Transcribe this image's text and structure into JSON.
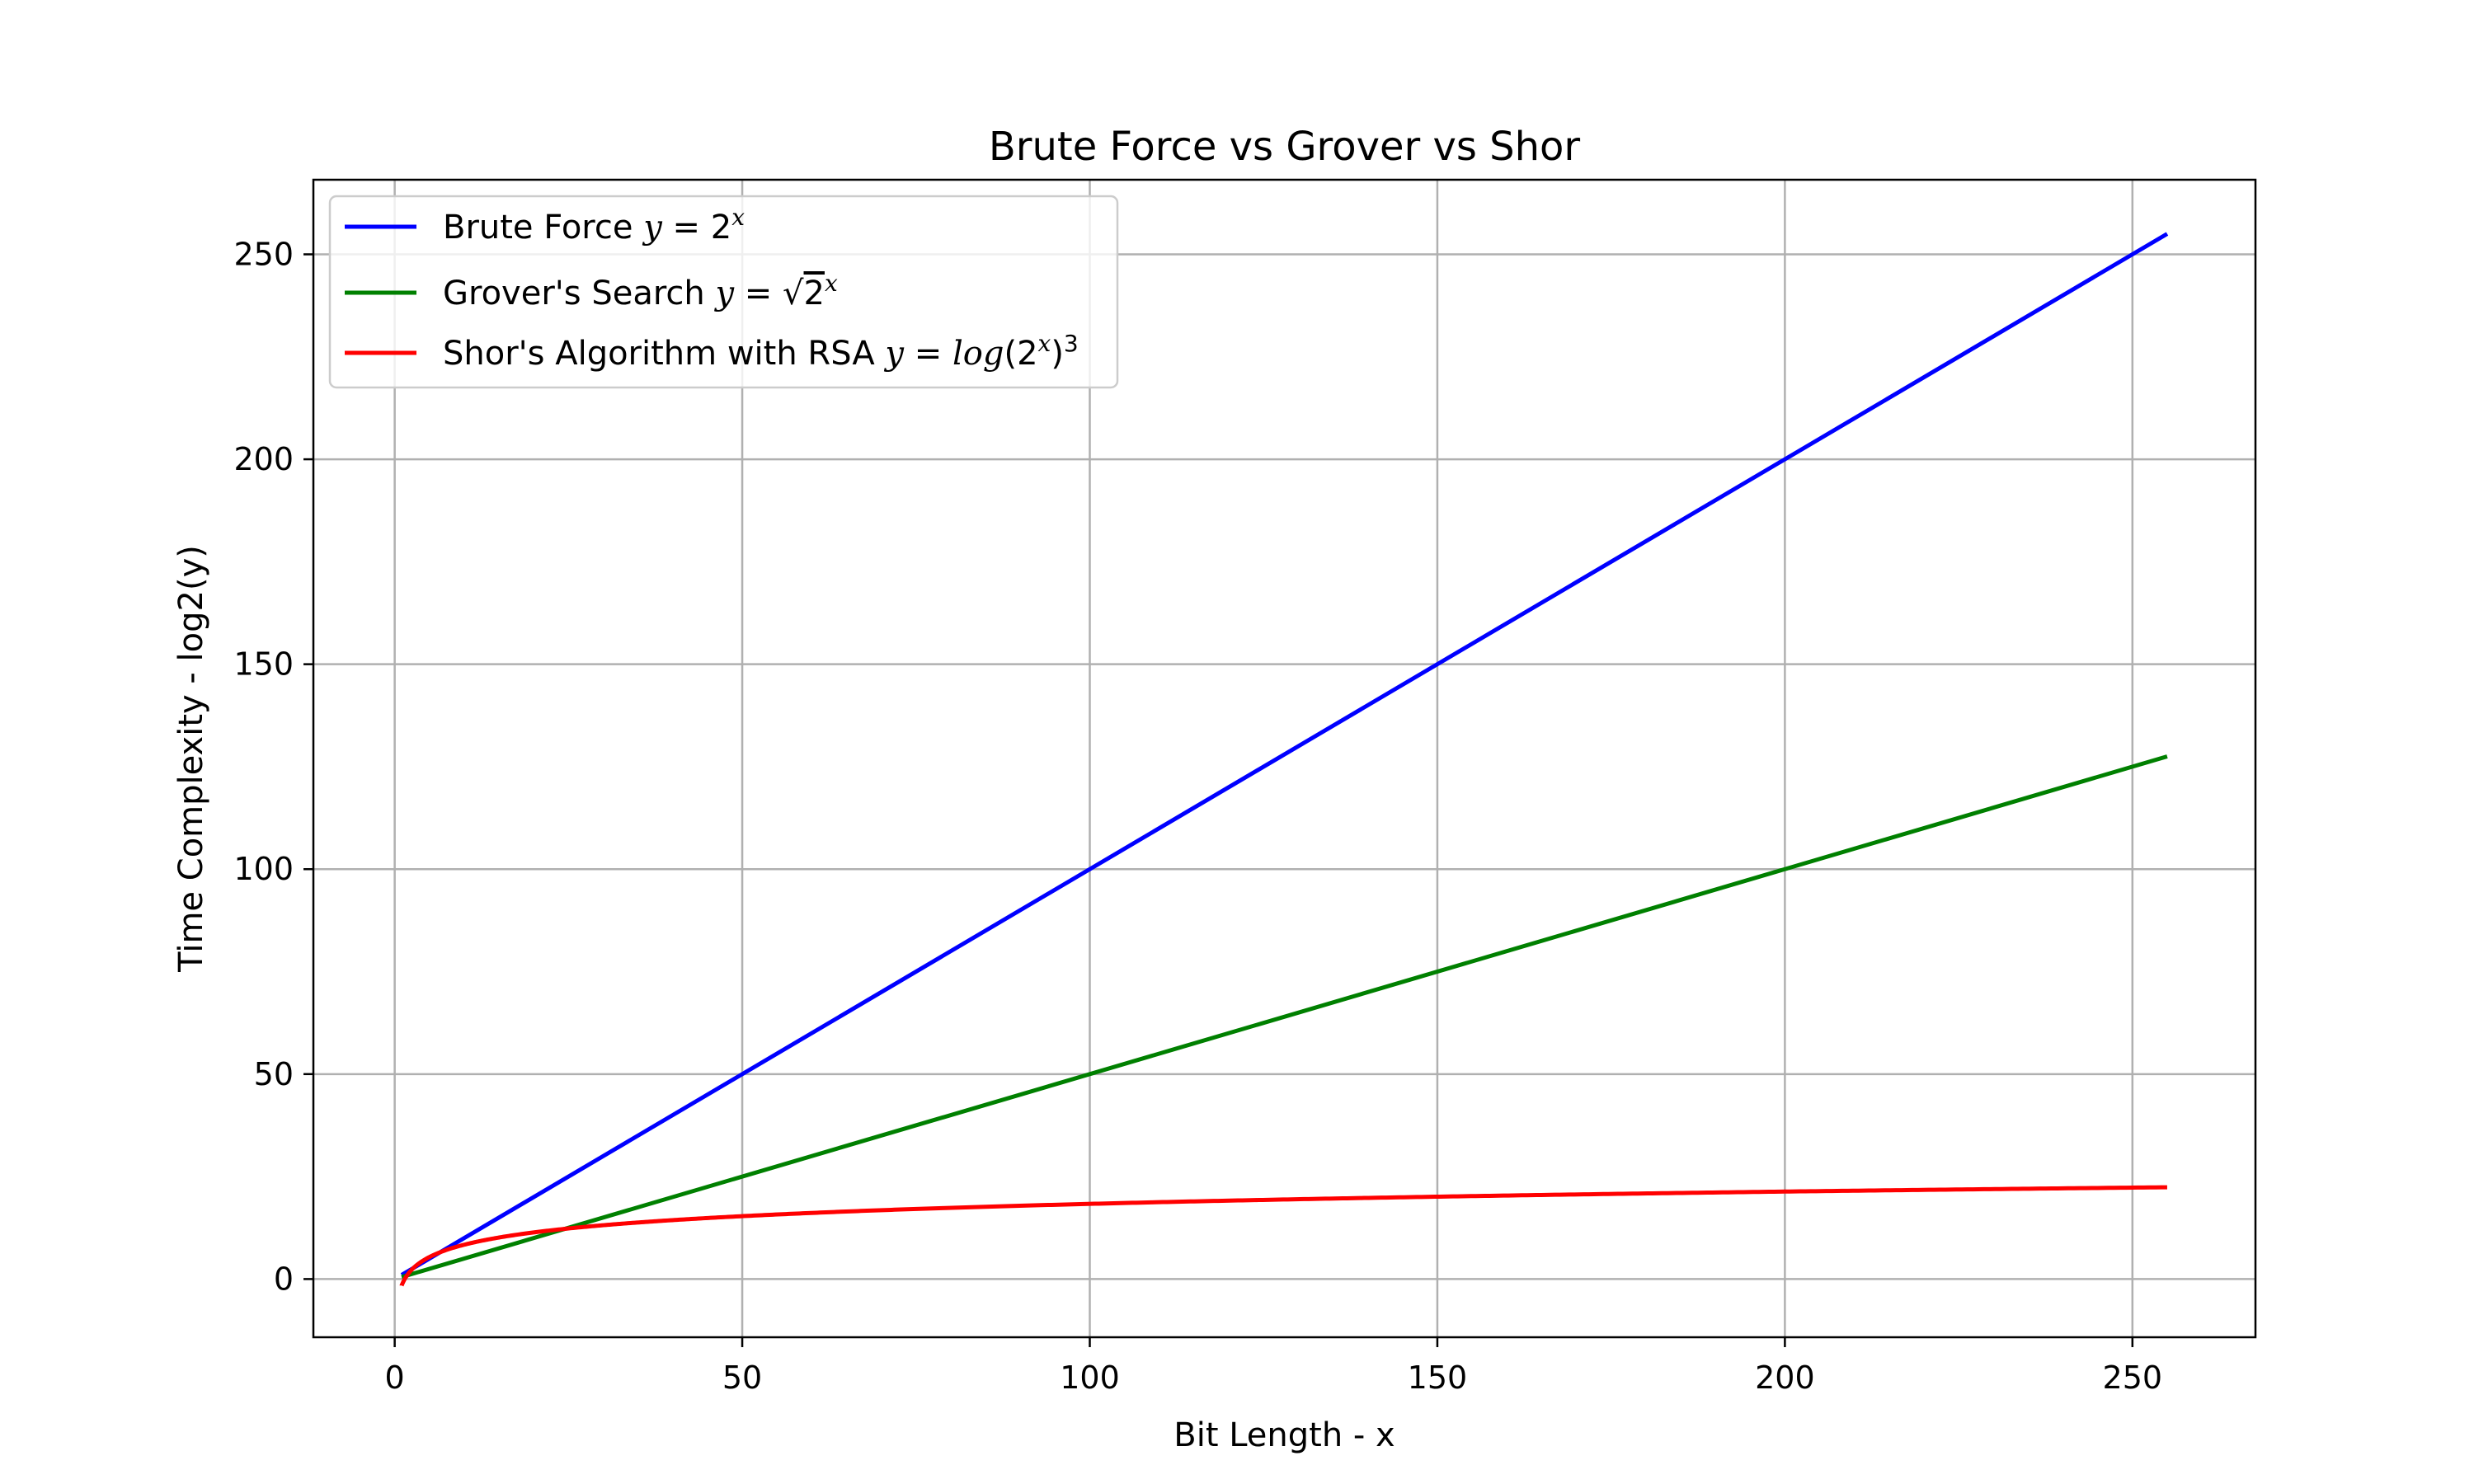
{
  "chart_data": {
    "type": "line",
    "title": "Brute Force vs Grover vs Shor",
    "xlabel": "Bit Length - x",
    "ylabel": "Time Complexity - log2(y)",
    "xlim": [
      -11.7,
      267.7
    ],
    "ylim": [
      -14.2,
      268.2
    ],
    "xticks": [
      0,
      50,
      100,
      150,
      200,
      250
    ],
    "yticks": [
      0,
      50,
      100,
      150,
      200,
      250
    ],
    "grid": true,
    "legend_position": "top-left",
    "series": [
      {
        "name": "Brute Force",
        "formula": {
          "lhs": "y",
          "eq": " = ",
          "base": "2",
          "sup": "x"
        },
        "color": "#0000ff",
        "kind": "linear",
        "x": [
          1,
          255
        ],
        "y": [
          1,
          255
        ]
      },
      {
        "name": "Grover's Search",
        "formula": {
          "lhs": "y",
          "eq": " = ",
          "radical": "√",
          "base": "2",
          "sup": "x"
        },
        "color": "#008000",
        "kind": "linear",
        "x": [
          1,
          255
        ],
        "y": [
          0.5,
          127.5
        ]
      },
      {
        "name": "Shor's Algorithm with RSA",
        "formula": {
          "lhs": "y",
          "eq": " = ",
          "fn": "log",
          "open": "(",
          "base": "2",
          "sup": "x",
          "close": ")",
          "sup2": "3"
        },
        "color": "#ff0000",
        "kind": "log3",
        "x": [
          1,
          255
        ],
        "y": [
          -1.59,
          22.54
        ]
      }
    ]
  }
}
